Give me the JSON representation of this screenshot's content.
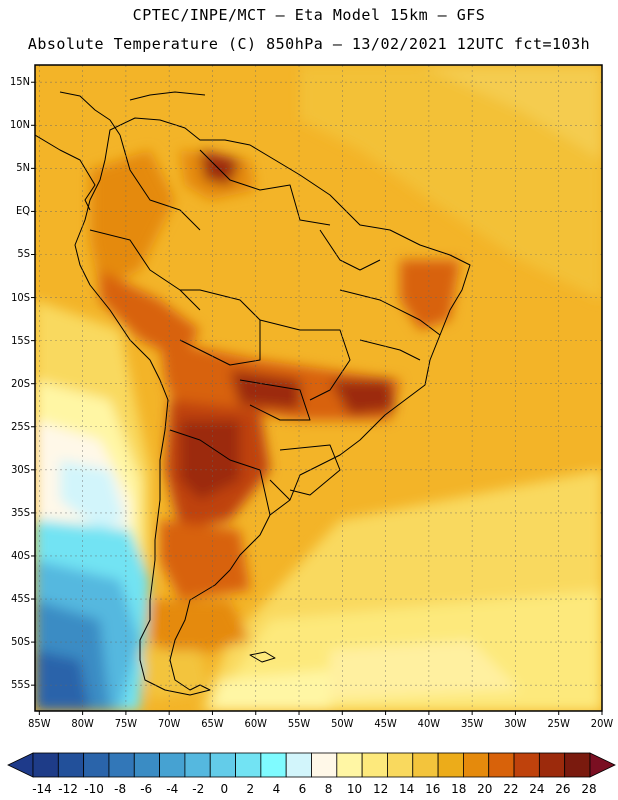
{
  "header": {
    "line1": "CPTEC/INPE/MCT –  Eta Model 15km – GFS",
    "line2": "Absolute Temperature (C) 850hPa – 13/02/2021 12UTC fct=103h"
  },
  "map": {
    "lat_labels": [
      "15N",
      "10N",
      "5N",
      "EQ",
      "5S",
      "10S",
      "15S",
      "20S",
      "25S",
      "30S",
      "35S",
      "40S",
      "45S",
      "50S",
      "55S"
    ],
    "lon_labels": [
      "85W",
      "80W",
      "75W",
      "70W",
      "65W",
      "60W",
      "55W",
      "50W",
      "45W",
      "40W",
      "35W",
      "30W",
      "25W",
      "20W"
    ],
    "lat_range": [
      -58,
      17
    ],
    "lon_range": [
      -85.5,
      -20
    ]
  },
  "colorbar": {
    "labels": [
      "-14",
      "-12",
      "-10",
      "-8",
      "-6",
      "-4",
      "-2",
      "0",
      "2",
      "4",
      "6",
      "8",
      "10",
      "12",
      "14",
      "16",
      "18",
      "20",
      "22",
      "24",
      "26",
      "28"
    ],
    "colors": [
      "#1e3c88",
      "#22509a",
      "#2a64aa",
      "#3277b8",
      "#3a8cc4",
      "#46a2d2",
      "#55b8df",
      "#63cce9",
      "#72e3f3",
      "#7ffbff",
      "#d2f5fb",
      "#fff8e8",
      "#fff6a4",
      "#fde97c",
      "#f9d95e",
      "#f3c43c",
      "#ecac1a",
      "#e58a0c",
      "#d8620a",
      "#bf420c",
      "#9c2a0c",
      "#7a1a0e"
    ],
    "under_color": "#1e3a8a",
    "over_color": "#7a0f22"
  }
}
